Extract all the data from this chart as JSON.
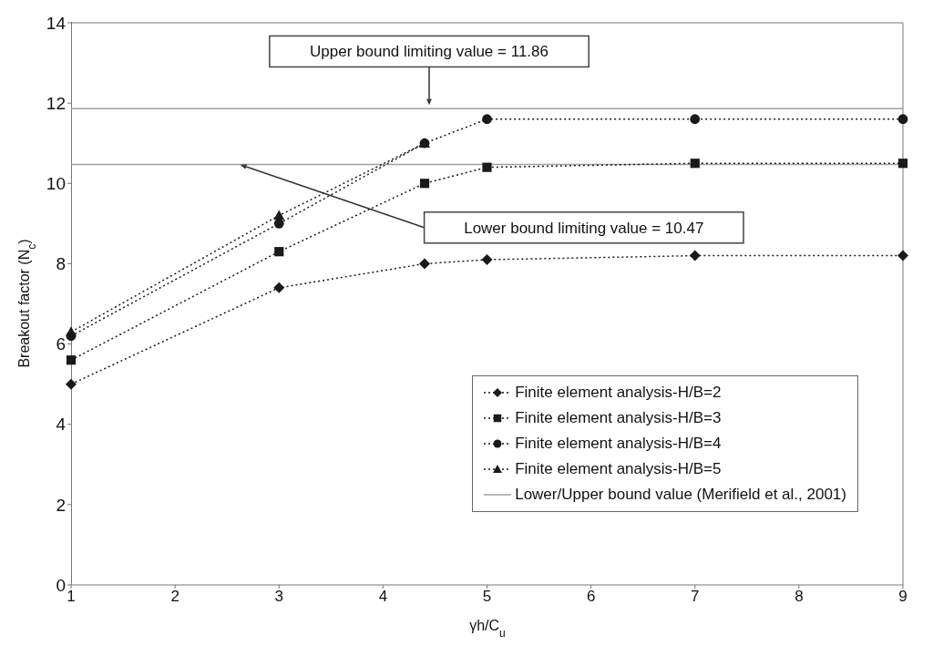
{
  "chart_data": {
    "type": "line",
    "xlabel": "γh/C$_{u}$",
    "ylabel": "Breakout factor (N$_{c}$)",
    "x": [
      1,
      3,
      4.4,
      5,
      7,
      9
    ],
    "series": [
      {
        "name": "Finite element analysis-H/B=2",
        "color": "#1a1a1a",
        "marker": "diamond",
        "values": [
          5.0,
          7.4,
          8.0,
          8.1,
          8.2,
          8.2
        ]
      },
      {
        "name": "Finite element analysis-H/B=3",
        "color": "#1a1a1a",
        "marker": "square",
        "values": [
          5.6,
          8.3,
          10.0,
          10.4,
          10.5,
          10.5
        ]
      },
      {
        "name": "Finite element analysis-H/B=4",
        "color": "#1a1a1a",
        "marker": "circle",
        "values": [
          6.2,
          9.0,
          11.0,
          11.6,
          11.6,
          11.6
        ]
      },
      {
        "name": "Finite element analysis-H/B=5",
        "color": "#1a1a1a",
        "marker": "triangle",
        "values": [
          6.3,
          9.2,
          11.0,
          null,
          null,
          null
        ]
      }
    ],
    "line_style": "dotted",
    "ref_lines": [
      {
        "axis": "y",
        "value": 11.86,
        "label": "Lower/Upper bound value (Merifield et al., 2001)",
        "color": "#a0a0a0"
      },
      {
        "axis": "y",
        "value": 10.47,
        "label": null,
        "color": "#a0a0a0"
      }
    ],
    "annotations": [
      "Upper bound limiting value = 11.86",
      "Lower bound limiting value = 10.47"
    ],
    "xlim": [
      1,
      9
    ],
    "xticks": [
      1,
      2,
      3,
      4,
      5,
      6,
      7,
      8,
      9
    ],
    "ylim": [
      0,
      14
    ],
    "yticks": [
      0,
      2,
      4,
      6,
      8,
      10,
      12,
      14
    ],
    "grid": false,
    "legend": "bottom right"
  }
}
